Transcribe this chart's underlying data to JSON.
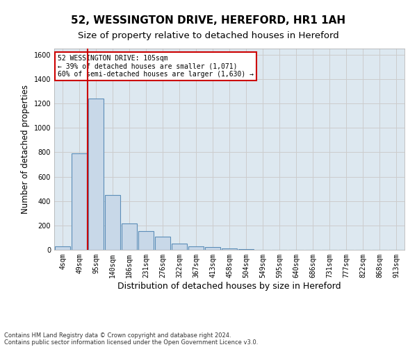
{
  "title": "52, WESSINGTON DRIVE, HEREFORD, HR1 1AH",
  "subtitle": "Size of property relative to detached houses in Hereford",
  "xlabel": "Distribution of detached houses by size in Hereford",
  "ylabel": "Number of detached properties",
  "footer1": "Contains HM Land Registry data © Crown copyright and database right 2024.",
  "footer2": "Contains public sector information licensed under the Open Government Licence v3.0.",
  "bins": [
    "4sqm",
    "49sqm",
    "95sqm",
    "140sqm",
    "186sqm",
    "231sqm",
    "276sqm",
    "322sqm",
    "367sqm",
    "413sqm",
    "458sqm",
    "504sqm",
    "549sqm",
    "595sqm",
    "640sqm",
    "686sqm",
    "731sqm",
    "777sqm",
    "822sqm",
    "868sqm",
    "913sqm"
  ],
  "values": [
    30,
    790,
    1240,
    450,
    215,
    155,
    110,
    50,
    30,
    20,
    10,
    5,
    0,
    0,
    0,
    0,
    0,
    0,
    0,
    0,
    0
  ],
  "bar_color": "#c8d8e8",
  "bar_edge_color": "#5b8db8",
  "red_line_x": 1.5,
  "annotation_line1": "52 WESSINGTON DRIVE: 105sqm",
  "annotation_line2": "← 39% of detached houses are smaller (1,071)",
  "annotation_line3": "60% of semi-detached houses are larger (1,630) →",
  "annotation_box_color": "#ffffff",
  "annotation_box_edge": "#cc0000",
  "ylim": [
    0,
    1650
  ],
  "yticks": [
    0,
    200,
    400,
    600,
    800,
    1000,
    1200,
    1400,
    1600
  ],
  "grid_color": "#cccccc",
  "bg_color": "#dde8f0",
  "title_fontsize": 11,
  "subtitle_fontsize": 9.5,
  "xlabel_fontsize": 9,
  "ylabel_fontsize": 8.5,
  "footer_fontsize": 6,
  "tick_fontsize": 7,
  "annotation_fontsize": 7
}
